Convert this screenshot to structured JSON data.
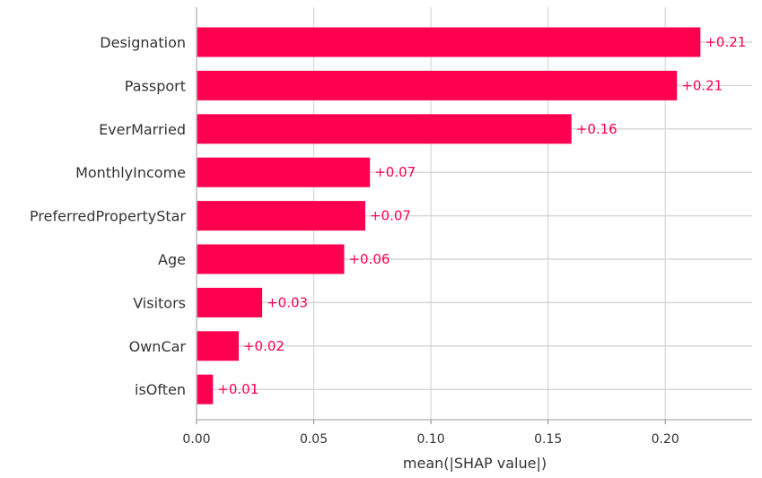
{
  "chart_data": {
    "type": "bar",
    "orientation": "horizontal",
    "title": "",
    "xlabel": "mean(|SHAP value|)",
    "ylabel": "",
    "xlim": [
      0,
      0.237
    ],
    "xticks": [
      0.0,
      0.05,
      0.1,
      0.15,
      0.2
    ],
    "xtick_labels": [
      "0.00",
      "0.05",
      "0.10",
      "0.15",
      "0.20"
    ],
    "grid": "vertical lines at x ticks and horizontal lines at each feature row",
    "bar_color": "#ff0051",
    "categories": [
      "Designation",
      "Passport",
      "EverMarried",
      "MonthlyIncome",
      "PreferredPropertyStar",
      "Age",
      "Visitors",
      "OwnCar",
      "isOften"
    ],
    "values": [
      0.215,
      0.205,
      0.16,
      0.074,
      0.072,
      0.063,
      0.028,
      0.018,
      0.007
    ],
    "value_labels": [
      "+0.21",
      "+0.21",
      "+0.16",
      "+0.07",
      "+0.07",
      "+0.06",
      "+0.03",
      "+0.02",
      "+0.01"
    ]
  }
}
